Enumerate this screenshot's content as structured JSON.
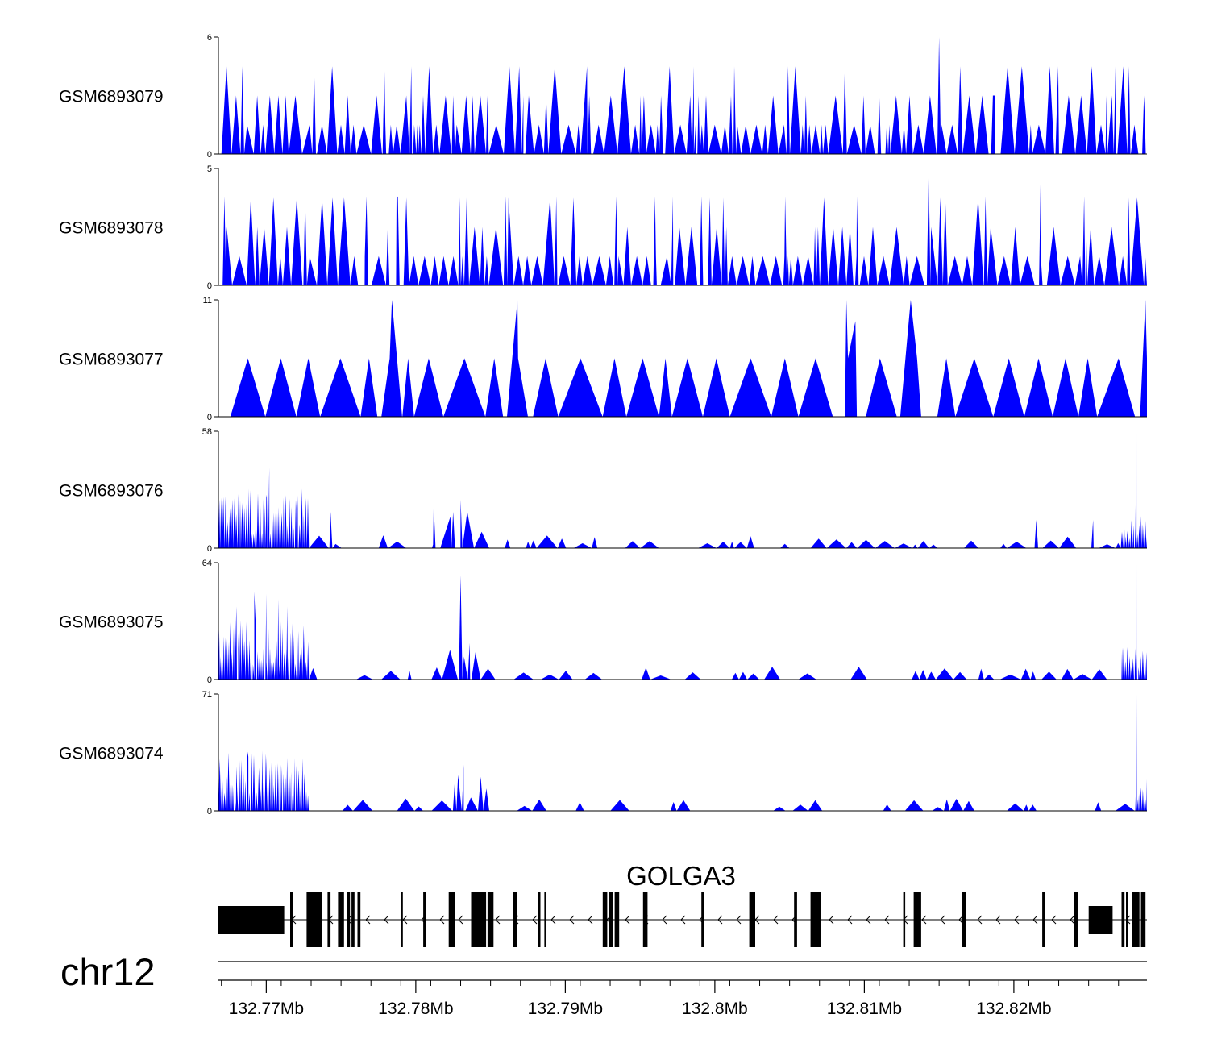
{
  "chart_data": {
    "type": "area",
    "title": "",
    "chromosome": "chr12",
    "gene": "GOLGA3",
    "xlim": [
      132.7668,
      132.8289
    ],
    "x_unit": "Mb",
    "x_ticks": [
      "132.77Mb",
      "132.78Mb",
      "132.79Mb",
      "132.8Mb",
      "132.81Mb",
      "132.82Mb"
    ],
    "x_tick_values": [
      132.77,
      132.78,
      132.79,
      132.8,
      132.81,
      132.82
    ],
    "fill_color": "#0000ff",
    "gene_color": "#000000",
    "tracks": [
      {
        "name": "GSM6893079",
        "ymax": 6,
        "ymin_label": "0",
        "ymax_label": "6",
        "pattern": "dense",
        "peaks": [
          [
            132.7684,
            4.5
          ],
          [
            132.7732,
            4.5
          ],
          [
            132.7779,
            4.5
          ],
          [
            132.7797,
            4.5
          ],
          [
            132.7825,
            3.0
          ],
          [
            132.7872,
            3.0
          ],
          [
            132.7916,
            3.0
          ],
          [
            132.7964,
            3.0
          ],
          [
            132.7986,
            4.5
          ],
          [
            132.8013,
            4.5
          ],
          [
            132.8049,
            4.5
          ],
          [
            132.811,
            3.0
          ],
          [
            132.815,
            6.0
          ],
          [
            132.8186,
            3.0
          ],
          [
            132.8229,
            3.0
          ],
          [
            132.8268,
            4.5
          ],
          [
            132.8277,
            4.5
          ],
          [
            132.8287,
            3.0
          ]
        ]
      },
      {
        "name": "GSM6893078",
        "ymax": 5,
        "ymin_label": "0",
        "ymax_label": "5",
        "pattern": "dense",
        "peaks": [
          [
            132.7672,
            3.8
          ],
          [
            132.7726,
            3.8
          ],
          [
            132.7767,
            3.8
          ],
          [
            132.7788,
            3.8
          ],
          [
            132.786,
            3.8
          ],
          [
            132.7894,
            3.8
          ],
          [
            132.7934,
            3.8
          ],
          [
            132.796,
            3.8
          ],
          [
            132.7972,
            3.8
          ],
          [
            132.7991,
            3.8
          ],
          [
            132.8047,
            3.8
          ],
          [
            132.8095,
            3.8
          ],
          [
            132.8143,
            5.0
          ],
          [
            132.8181,
            3.8
          ],
          [
            132.8218,
            5.0
          ],
          [
            132.8247,
            3.8
          ]
        ]
      },
      {
        "name": "GSM6893077",
        "ymax": 11,
        "ymin_label": "0",
        "ymax_label": "11",
        "pattern": "sparse",
        "peaks": [
          [
            132.7784,
            11
          ],
          [
            132.7868,
            11
          ],
          [
            132.8088,
            11
          ],
          [
            132.8094,
            9
          ],
          [
            132.8131,
            11
          ],
          [
            132.8288,
            11
          ]
        ]
      },
      {
        "name": "GSM6893076",
        "ymax": 58,
        "ymin_label": "0",
        "ymax_label": "58",
        "pattern": "enriched",
        "peaks": [
          [
            132.77,
            25
          ],
          [
            132.7702,
            40
          ],
          [
            132.772,
            20
          ],
          [
            132.7743,
            18
          ],
          [
            132.7812,
            22
          ],
          [
            132.7825,
            18
          ],
          [
            132.783,
            24
          ],
          [
            132.8215,
            14
          ],
          [
            132.8253,
            14
          ],
          [
            132.8282,
            58
          ]
        ]
      },
      {
        "name": "GSM6893075",
        "ymax": 64,
        "ymin_label": "0",
        "ymax_label": "64",
        "pattern": "enriched",
        "peaks": [
          [
            132.768,
            40
          ],
          [
            132.7692,
            48
          ],
          [
            132.77,
            47
          ],
          [
            132.7708,
            44
          ],
          [
            132.7714,
            40
          ],
          [
            132.783,
            57
          ],
          [
            132.7836,
            20
          ],
          [
            132.8282,
            64
          ]
        ]
      },
      {
        "name": "GSM6893074",
        "ymax": 71,
        "ymin_label": "0",
        "ymax_label": "71",
        "pattern": "enriched",
        "peaks": [
          [
            132.768,
            27
          ],
          [
            132.7688,
            33
          ],
          [
            132.77,
            27
          ],
          [
            132.771,
            28
          ],
          [
            132.7718,
            24
          ],
          [
            132.7832,
            28
          ],
          [
            132.7826,
            17
          ],
          [
            132.8282,
            71
          ]
        ]
      }
    ],
    "exons": [
      [
        132.7668,
        132.7712
      ],
      [
        132.7716,
        132.7718
      ],
      [
        132.7727,
        132.7737
      ],
      [
        132.7741,
        132.7743
      ],
      [
        132.7748,
        132.7752
      ],
      [
        132.7754,
        132.7756
      ],
      [
        132.7757,
        132.7759
      ],
      [
        132.7761,
        132.7763
      ],
      [
        132.779,
        132.7791
      ],
      [
        132.7805,
        132.7807
      ],
      [
        132.7822,
        132.7826
      ],
      [
        132.7837,
        132.7847
      ],
      [
        132.7848,
        132.7852
      ],
      [
        132.7865,
        132.7868
      ],
      [
        132.7882,
        132.7883
      ],
      [
        132.7886,
        132.7887
      ],
      [
        132.7925,
        132.7928
      ],
      [
        132.7929,
        132.7932
      ],
      [
        132.7933,
        132.7936
      ],
      [
        132.7952,
        132.7955
      ],
      [
        132.7991,
        132.7993
      ],
      [
        132.8023,
        132.8027
      ],
      [
        132.8053,
        132.8055
      ],
      [
        132.8064,
        132.8071
      ],
      [
        132.8126,
        132.8127
      ],
      [
        132.8133,
        132.8138
      ],
      [
        132.8165,
        132.8168
      ],
      [
        132.8219,
        132.8221
      ],
      [
        132.824,
        132.8243
      ],
      [
        132.825,
        132.8266
      ],
      [
        132.8272,
        132.8274
      ],
      [
        132.8275,
        132.8276
      ],
      [
        132.8279,
        132.8284
      ],
      [
        132.8285,
        132.8288
      ]
    ]
  }
}
